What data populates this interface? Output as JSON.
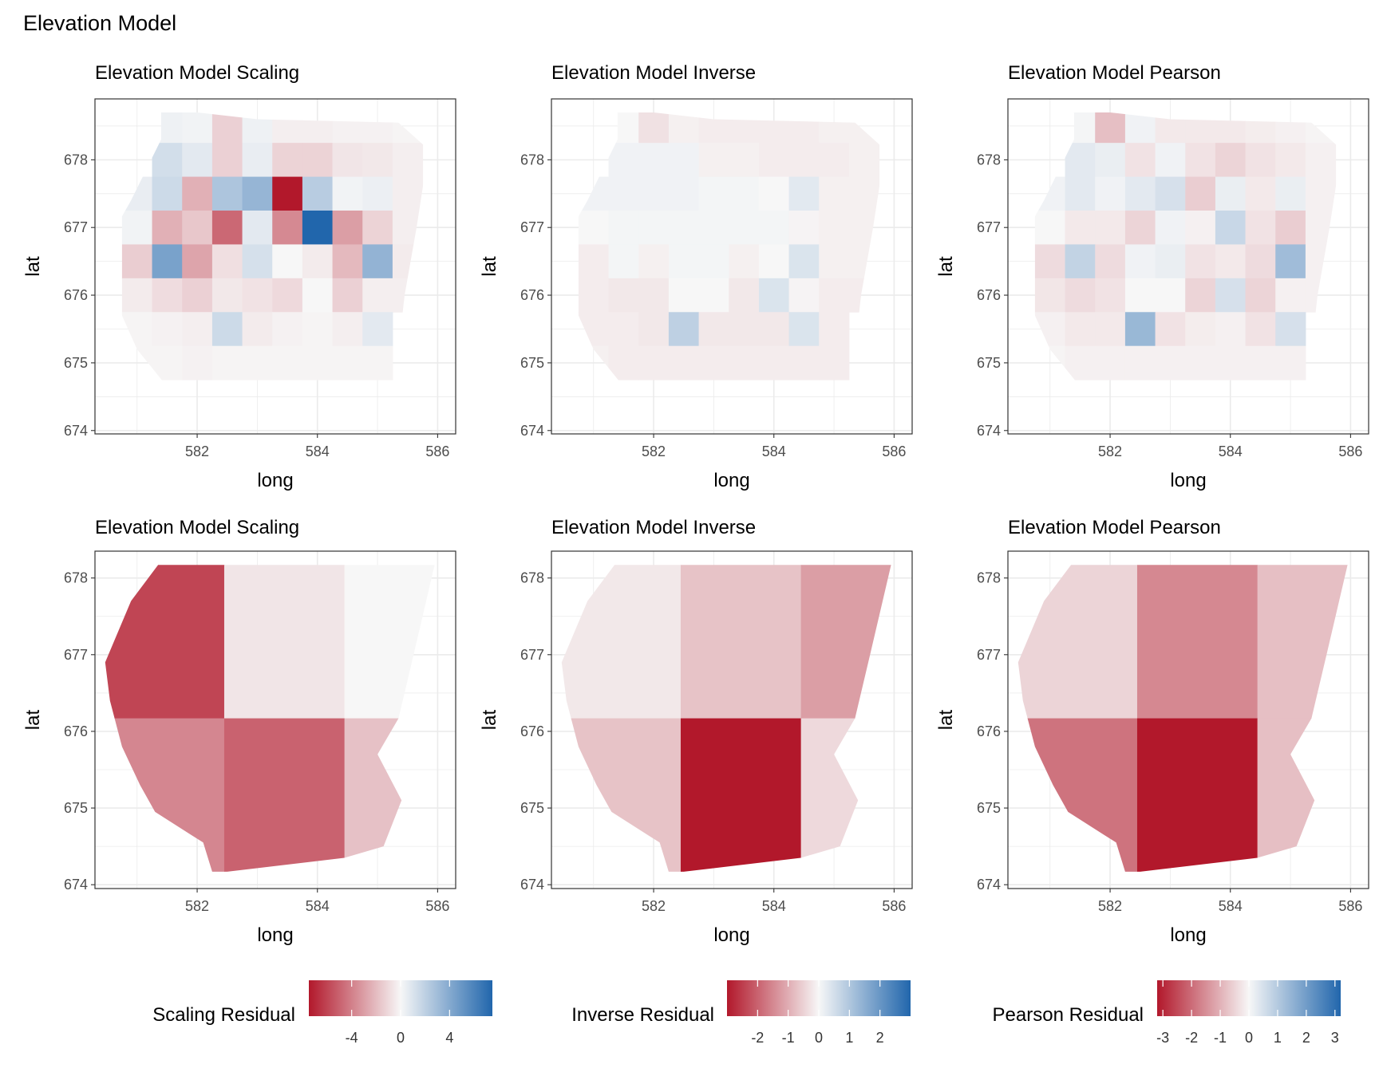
{
  "figure": {
    "title": "Elevation Model"
  },
  "colors": {
    "neg": "#b2182b",
    "mid": "#f7f7f7",
    "pos": "#2166ac",
    "grid": "#ebebeb",
    "frame": "#333333"
  },
  "chart_data": [
    {
      "type": "heatmap",
      "title": "Elevation Model Scaling",
      "xlabel": "long",
      "ylabel": "lat",
      "xticks": [
        "582",
        "584",
        "586"
      ],
      "yticks": [
        "674",
        "675",
        "676",
        "677",
        "678"
      ],
      "xlim": [
        580.3,
        586.3
      ],
      "ylim": [
        673.95,
        678.9
      ],
      "color_limits": [
        -7.5,
        7.5
      ],
      "cell_size": 0.5,
      "x_centers": [
        581.0,
        581.5,
        582.0,
        582.5,
        583.0,
        583.5,
        584.0,
        584.5,
        585.0,
        585.5
      ],
      "y_centers": [
        678.5,
        678.0,
        677.5,
        677.0,
        676.5,
        676.0,
        675.5,
        675.0
      ],
      "values": [
        [
          null,
          0.3,
          0.2,
          -1.3,
          0.3,
          -0.3,
          -0.3,
          -0.2,
          -0.2,
          -0.1
        ],
        [
          null,
          1.3,
          0.7,
          -1.3,
          0.5,
          -1.2,
          -1.2,
          -0.6,
          -0.5,
          -0.3
        ],
        [
          0.5,
          1.5,
          -2.4,
          2.6,
          3.4,
          -7.5,
          2.2,
          0.2,
          0.4,
          -0.3
        ],
        [
          0.2,
          -2.4,
          -1.6,
          -4.8,
          0.7,
          -3.7,
          7.5,
          -3.0,
          -1.2,
          -0.3
        ],
        [
          -1.4,
          4.4,
          -2.8,
          -0.8,
          1.2,
          0.0,
          -0.4,
          -2.1,
          3.5,
          -0.4
        ],
        [
          -0.4,
          -0.9,
          -1.3,
          -0.5,
          -0.7,
          -1.0,
          0.0,
          -1.3,
          -0.3,
          -0.3
        ],
        [
          -0.1,
          -0.2,
          -0.3,
          1.5,
          -0.4,
          -0.2,
          -0.1,
          -0.3,
          0.7,
          null
        ],
        [
          -0.1,
          -0.1,
          -0.2,
          -0.1,
          -0.1,
          -0.1,
          -0.1,
          -0.1,
          -0.1,
          null
        ]
      ]
    },
    {
      "type": "heatmap",
      "title": "Elevation Model Inverse",
      "xlabel": "long",
      "ylabel": "lat",
      "xticks": [
        "582",
        "584",
        "586"
      ],
      "yticks": [
        "674",
        "675",
        "676",
        "677",
        "678"
      ],
      "xlim": [
        580.3,
        586.3
      ],
      "ylim": [
        673.95,
        678.9
      ],
      "color_limits": [
        -3,
        3
      ],
      "cell_size": 0.5,
      "x_centers": [
        581.0,
        581.5,
        582.0,
        582.5,
        583.0,
        583.5,
        584.0,
        584.5,
        585.0,
        585.5
      ],
      "y_centers": [
        678.5,
        678.0,
        677.5,
        677.0,
        676.5,
        676.0,
        675.5,
        675.0
      ],
      "values": [
        [
          null,
          0.0,
          -0.3,
          -0.1,
          -0.15,
          -0.15,
          -0.15,
          -0.15,
          -0.1,
          -0.1
        ],
        [
          null,
          0.1,
          0.1,
          0.1,
          -0.1,
          -0.1,
          -0.15,
          -0.15,
          -0.15,
          -0.1
        ],
        [
          0.1,
          0.1,
          0.1,
          0.1,
          0.05,
          0.05,
          0.0,
          0.3,
          -0.1,
          -0.1
        ],
        [
          0.0,
          0.05,
          0.05,
          0.05,
          0.05,
          0.05,
          0.05,
          -0.05,
          -0.1,
          -0.1
        ],
        [
          -0.15,
          0.05,
          -0.1,
          0.05,
          0.05,
          -0.1,
          0.0,
          0.4,
          -0.1,
          -0.1
        ],
        [
          -0.15,
          -0.2,
          -0.2,
          0.0,
          0.0,
          -0.2,
          0.4,
          -0.05,
          -0.15,
          -0.15
        ],
        [
          -0.15,
          -0.15,
          -0.2,
          0.8,
          -0.2,
          -0.2,
          -0.2,
          0.4,
          -0.15,
          null
        ],
        [
          -0.1,
          -0.15,
          -0.15,
          -0.15,
          -0.15,
          -0.15,
          -0.15,
          -0.15,
          -0.15,
          null
        ]
      ]
    },
    {
      "type": "heatmap",
      "title": "Elevation Model Pearson",
      "xlabel": "long",
      "ylabel": "lat",
      "xticks": [
        "582",
        "584",
        "586"
      ],
      "yticks": [
        "674",
        "675",
        "676",
        "677",
        "678"
      ],
      "xlim": [
        580.3,
        586.3
      ],
      "ylim": [
        673.95,
        678.9
      ],
      "color_limits": [
        -3.2,
        3.2
      ],
      "cell_size": 0.5,
      "x_centers": [
        581.0,
        581.5,
        582.0,
        582.5,
        583.0,
        583.5,
        584.0,
        584.5,
        585.0,
        585.5
      ],
      "y_centers": [
        678.5,
        678.0,
        677.5,
        677.0,
        676.5,
        676.0,
        675.5,
        675.0
      ],
      "values": [
        [
          null,
          0.05,
          -0.8,
          0.1,
          -0.2,
          -0.2,
          -0.2,
          -0.15,
          -0.1,
          -0.05
        ],
        [
          null,
          0.3,
          0.2,
          -0.3,
          0.1,
          -0.3,
          -0.5,
          -0.3,
          -0.2,
          -0.1
        ],
        [
          0.1,
          0.3,
          0.1,
          0.3,
          0.5,
          -0.6,
          0.2,
          -0.2,
          0.2,
          -0.1
        ],
        [
          0.0,
          -0.2,
          -0.2,
          -0.5,
          0.1,
          -0.1,
          0.7,
          -0.3,
          -0.6,
          -0.1
        ],
        [
          -0.4,
          0.8,
          -0.4,
          0.1,
          0.2,
          -0.3,
          -0.2,
          -0.4,
          1.3,
          -0.1
        ],
        [
          -0.25,
          -0.4,
          -0.3,
          0.0,
          0.0,
          -0.5,
          0.5,
          -0.5,
          -0.1,
          -0.1
        ],
        [
          -0.1,
          -0.2,
          -0.2,
          1.4,
          -0.3,
          -0.15,
          -0.1,
          -0.3,
          0.5,
          null
        ],
        [
          -0.05,
          -0.1,
          -0.1,
          -0.1,
          -0.1,
          -0.1,
          -0.1,
          -0.1,
          -0.1,
          null
        ]
      ]
    },
    {
      "type": "heatmap",
      "title": "Elevation Model Scaling",
      "xlabel": "long",
      "ylabel": "lat",
      "xticks": [
        "582",
        "584",
        "586"
      ],
      "yticks": [
        "674",
        "675",
        "676",
        "677",
        "678"
      ],
      "xlim": [
        580.3,
        586.3
      ],
      "ylim": [
        673.95,
        678.35
      ],
      "color_limits": [
        -7.5,
        7.5
      ],
      "x_edges": [
        580.47,
        582.45,
        584.45,
        586.0
      ],
      "y_edges": [
        674.15,
        676.17,
        678.17
      ],
      "values": [
        [
          -6.0,
          -0.6,
          0.0
        ],
        [
          -3.8,
          -5.0,
          -1.8
        ]
      ]
    },
    {
      "type": "heatmap",
      "title": "Elevation Model Inverse",
      "xlabel": "long",
      "ylabel": "lat",
      "xticks": [
        "582",
        "584",
        "586"
      ],
      "yticks": [
        "674",
        "675",
        "676",
        "677",
        "678"
      ],
      "xlim": [
        580.3,
        586.3
      ],
      "ylim": [
        673.95,
        678.35
      ],
      "color_limits": [
        -3,
        3
      ],
      "x_edges": [
        580.47,
        582.45,
        584.45,
        586.0
      ],
      "y_edges": [
        674.15,
        676.17,
        678.17
      ],
      "values": [
        [
          -0.2,
          -0.7,
          -1.2
        ],
        [
          -0.7,
          -3.0,
          -0.4
        ]
      ]
    },
    {
      "type": "heatmap",
      "title": "Elevation Model Pearson",
      "xlabel": "long",
      "ylabel": "lat",
      "xticks": [
        "582",
        "584",
        "586"
      ],
      "yticks": [
        "674",
        "675",
        "676",
        "677",
        "678"
      ],
      "xlim": [
        580.3,
        586.3
      ],
      "ylim": [
        673.95,
        678.35
      ],
      "color_limits": [
        -3.2,
        3.2
      ],
      "x_edges": [
        580.47,
        582.45,
        584.45,
        586.0
      ],
      "y_edges": [
        674.15,
        676.17,
        678.17
      ],
      "values": [
        [
          -0.5,
          -1.6,
          -0.8
        ],
        [
          -1.9,
          -3.2,
          -0.8
        ]
      ]
    }
  ],
  "legends": [
    {
      "title": "Scaling Residual",
      "limits": [
        -7.5,
        7.5
      ],
      "ticks": [
        -4,
        0,
        4
      ],
      "labels": [
        "-4",
        "0",
        "4"
      ]
    },
    {
      "title": "Inverse Residual",
      "limits": [
        -3,
        3
      ],
      "ticks": [
        -2,
        -1,
        0,
        1,
        2
      ],
      "labels": [
        "-2",
        "-1",
        "0",
        "1",
        "2"
      ]
    },
    {
      "title": "Pearson Residual",
      "limits": [
        -3.2,
        3.2
      ],
      "ticks": [
        -3,
        -2,
        -1,
        0,
        1,
        2,
        3
      ],
      "labels": [
        "-3",
        "-2",
        "-1",
        "0",
        "1",
        "2",
        "3"
      ]
    }
  ]
}
